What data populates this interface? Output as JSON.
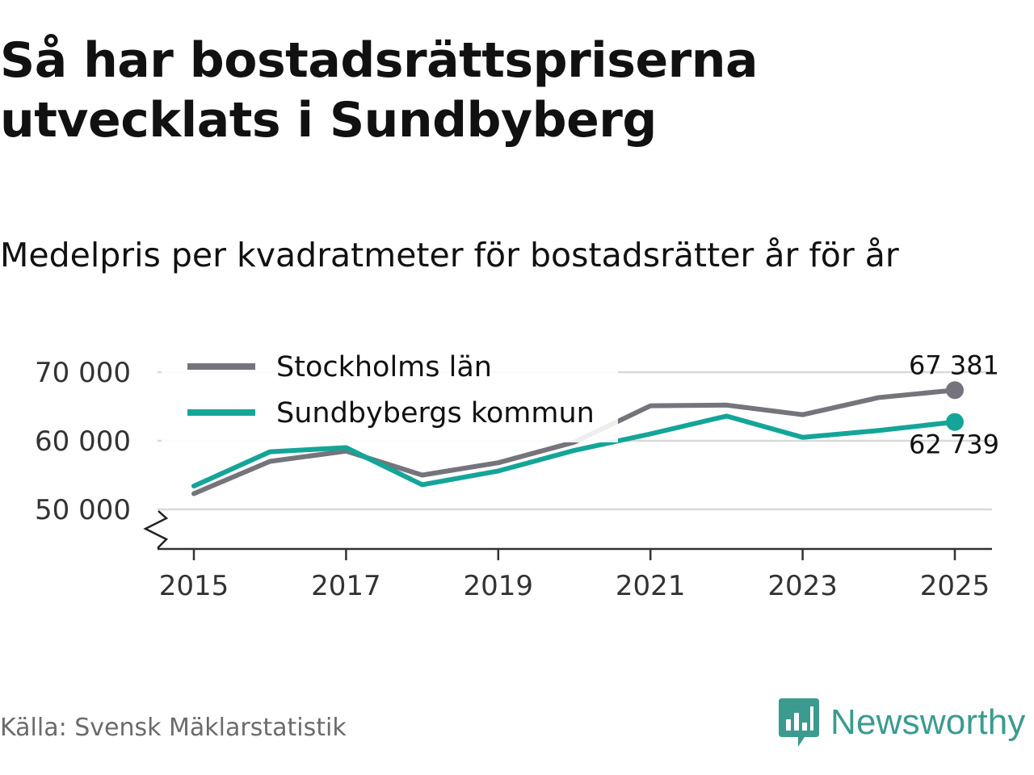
{
  "title": "Så har bostadsrättspriserna utvecklats i Sundbyberg",
  "subtitle": "Medelpris per kvadratmeter för bostadsrätter år för år",
  "source": "Källa: Svensk Mäklarstatistik",
  "logo": {
    "text": "Newsworthy",
    "icon": "newsworthy-bar-chart-icon",
    "color": "#3b9b8f"
  },
  "chart_data": {
    "type": "line",
    "title": "Så har bostadsrättspriserna utvecklats i Sundbyberg",
    "subtitle": "Medelpris per kvadratmeter för bostadsrätter år för år",
    "xlabel": "",
    "ylabel": "",
    "x": [
      2015,
      2016,
      2017,
      2018,
      2019,
      2020,
      2021,
      2022,
      2023,
      2024,
      2025
    ],
    "xticks": [
      2015,
      2017,
      2019,
      2021,
      2023,
      2025
    ],
    "xtick_labels": [
      "2015",
      "2017",
      "2019",
      "2021",
      "2023",
      "2025"
    ],
    "yticks": [
      50000,
      60000,
      70000
    ],
    "ytick_labels": [
      "50 000",
      "60 000",
      "70 000"
    ],
    "ylim": [
      44500,
      73000
    ],
    "xlim": [
      2014.5,
      2025.5
    ],
    "axis_break": true,
    "grid": true,
    "legend_position": "top-left",
    "series": [
      {
        "name": "Stockholms län",
        "color": "#75747c",
        "values": [
          52300,
          57000,
          58500,
          55000,
          56800,
          59800,
          65100,
          65200,
          63800,
          66300,
          67381
        ],
        "end_label": "67 381"
      },
      {
        "name": "Sundbybergs kommun",
        "color": "#14a598",
        "values": [
          53400,
          58400,
          59000,
          53600,
          55600,
          58600,
          61000,
          63600,
          60500,
          61500,
          62739
        ],
        "end_label": "62 739"
      }
    ]
  }
}
